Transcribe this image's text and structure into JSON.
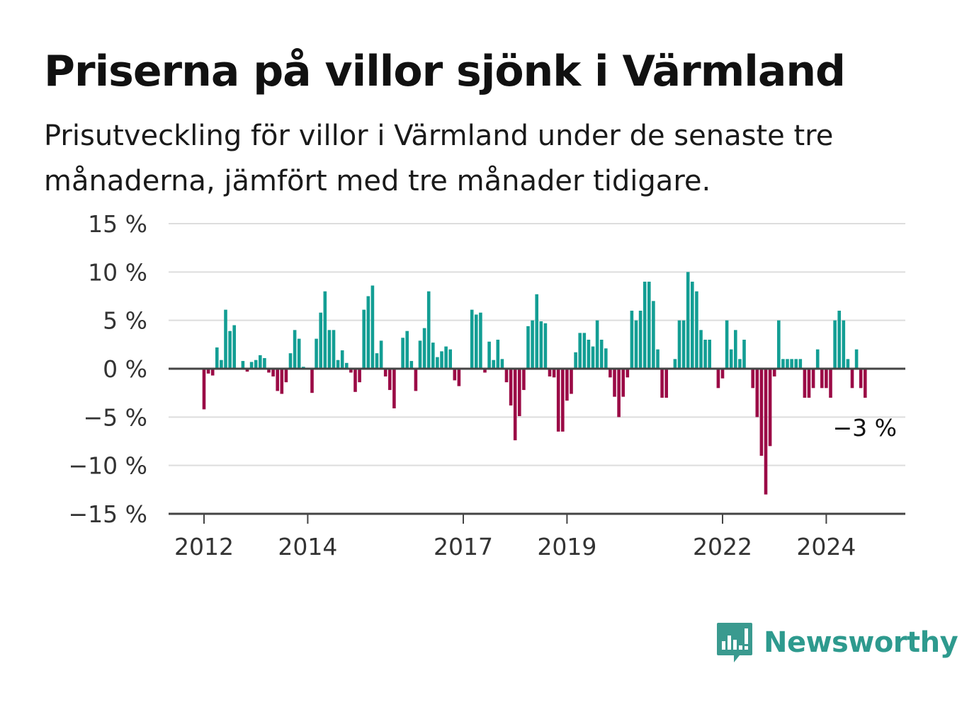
{
  "header": {
    "title": "Priserna på villor sjönk i Värmland",
    "subtitle": "Prisutveckling för villor i Värmland under de senaste tre månaderna, jämfört med tre månader tidigare."
  },
  "brand": {
    "name": "Newsworthy",
    "icon": "newsworthy-bar-chart-icon",
    "color": "#3a9a8f"
  },
  "colors": {
    "positive": "#139e94",
    "negative": "#9b0b46",
    "grid": "#dddddd",
    "axis": "#444444"
  },
  "chart_data": {
    "type": "bar",
    "ylim": [
      -15,
      15
    ],
    "yticks": [
      -15,
      -10,
      -5,
      0,
      5,
      10,
      15
    ],
    "ytick_labels": [
      "−15 %",
      "−10 %",
      "−5 %",
      "0 %",
      "5 %",
      "10 %",
      "15 %"
    ],
    "xticks": [
      {
        "year": 2012,
        "label": "2012"
      },
      {
        "year": 2014,
        "label": "2014"
      },
      {
        "year": 2017,
        "label": "2017"
      },
      {
        "year": 2019,
        "label": "2019"
      },
      {
        "year": 2022,
        "label": "2022"
      },
      {
        "year": 2024,
        "label": "2024"
      }
    ],
    "start": "2011-05",
    "frequency": "monthly",
    "grid": true,
    "end_label": "−3 %",
    "values": [
      0,
      0,
      0,
      0,
      0,
      0,
      0,
      0,
      -4.2,
      -0.5,
      -0.7,
      2.2,
      0.9,
      6.1,
      3.9,
      4.5,
      0,
      0.8,
      -0.3,
      0.7,
      0.9,
      1.4,
      1.1,
      -0.4,
      -0.8,
      -2.3,
      -2.6,
      -1.4,
      1.6,
      4.0,
      3.1,
      0.2,
      0,
      -2.5,
      3.1,
      5.8,
      8.0,
      4.0,
      4.0,
      0.9,
      1.9,
      0.6,
      -0.4,
      -2.4,
      -1.4,
      6.1,
      7.5,
      8.6,
      1.6,
      2.9,
      -0.8,
      -2.2,
      -4.1,
      0,
      3.2,
      3.9,
      0.8,
      -2.3,
      2.9,
      4.2,
      8.0,
      2.7,
      1.2,
      1.8,
      2.3,
      2.0,
      -1.2,
      -1.8,
      0,
      0,
      6.1,
      5.6,
      5.8,
      -0.4,
      2.8,
      0.9,
      3.0,
      1.0,
      -1.4,
      -3.8,
      -7.4,
      -4.9,
      -2.2,
      4.4,
      5.0,
      7.7,
      4.9,
      4.7,
      -0.8,
      -0.9,
      -6.5,
      -6.5,
      -3.3,
      -2.6,
      1.7,
      3.7,
      3.7,
      3.0,
      2.3,
      5.0,
      3.0,
      2.1,
      -0.9,
      -2.9,
      -5.0,
      -2.9,
      -0.9,
      6.0,
      5.0,
      6.0,
      9.0,
      9.0,
      7.0,
      2.0,
      -3.0,
      -3.0,
      0,
      1.0,
      5.0,
      5.0,
      10.0,
      9.0,
      8.0,
      4.0,
      3.0,
      3.0,
      0,
      -2.0,
      -1.0,
      5.0,
      2.0,
      4.0,
      1.0,
      3.0,
      0,
      -2.0,
      -5.0,
      -9.0,
      -13.0,
      -8.0,
      -0.8,
      5.0,
      1.0,
      1.0,
      1.0,
      1.0,
      1.0,
      -3.0,
      -3.0,
      -2.0,
      2.0,
      -2.0,
      -2.0,
      -3.0,
      5.0,
      6.0,
      5.0,
      1.0,
      -2.0,
      2.0,
      -2.0,
      -3.0
    ]
  }
}
